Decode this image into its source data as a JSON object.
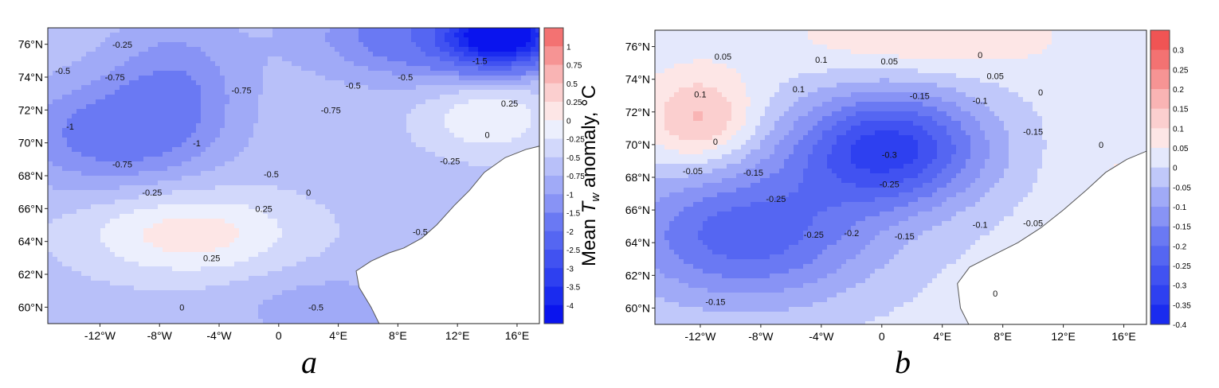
{
  "chart_data": [
    {
      "type": "heatmap",
      "panel": "a",
      "panel_label": "a",
      "ylabel": "",
      "xlim": [
        -15.5,
        17.5
      ],
      "ylim": [
        59,
        77
      ],
      "x_ticks": [
        -12,
        -8,
        -4,
        0,
        4,
        8,
        12,
        16
      ],
      "x_tick_labels": [
        "-12°W",
        "-8°W",
        "-4°W",
        "0",
        "4°E",
        "8°E",
        "12°E",
        "16°E"
      ],
      "y_ticks": [
        60,
        62,
        64,
        66,
        68,
        70,
        72,
        74,
        76
      ],
      "y_tick_labels": [
        "60°N",
        "62°N",
        "64°N",
        "66°N",
        "68°N",
        "70°N",
        "72°N",
        "74°N",
        "76°N"
      ],
      "colorbar": {
        "label": "Mean T_w anomaly, °C",
        "levels": [
          -4,
          -3.5,
          -3,
          -2.5,
          -2,
          -1.5,
          -1,
          -0.75,
          -0.5,
          -0.25,
          0,
          0.25,
          0.5,
          0.75,
          1,
          1.25
        ],
        "tick_labels": [
          "1",
          "0.75",
          "0.5",
          "0.25",
          "0",
          "-0.25",
          "-0.5",
          "-0.75",
          "-1",
          "-1.5",
          "-2",
          "-2.5",
          "-3",
          "-3.5",
          "-4"
        ],
        "colors": [
          "#0a14ee",
          "#1a2bef",
          "#2e40f0",
          "#4152f1",
          "#5566f2",
          "#6a79f3",
          "#8893f5",
          "#a0aaf7",
          "#b8c0f9",
          "#d2d8fb",
          "#eceffd",
          "#fde6e6",
          "#fbcfcf",
          "#f9b4b4",
          "#f69494",
          "#f37272"
        ]
      },
      "field": {
        "base": -0.35,
        "centers": [
          {
            "lon": 15,
            "lat": 76.5,
            "amp": -3.7,
            "sx": 2.5,
            "sy": 1.2
          },
          {
            "lon": 10,
            "lat": 76.5,
            "amp": -1.0,
            "sx": 5,
            "sy": 1.8
          },
          {
            "lon": -7,
            "lat": 73,
            "amp": -0.65,
            "sx": 3.2,
            "sy": 3
          },
          {
            "lon": -12,
            "lat": 70.5,
            "amp": -0.75,
            "sx": 4,
            "sy": 2.2
          },
          {
            "lon": -6,
            "lat": 64.5,
            "amp": 0.75,
            "sx": 5,
            "sy": 1.8
          },
          {
            "lon": 14,
            "lat": 71.5,
            "amp": 0.6,
            "sx": 3,
            "sy": 1.5
          },
          {
            "lon": 3,
            "lat": 60,
            "amp": -0.3,
            "sx": 4,
            "sy": 1.5
          }
        ]
      },
      "contour_labels": [
        "-0.25",
        "-0.5",
        "-0.75",
        "-1",
        "-0.75",
        "-0.5",
        "-0.75",
        "-0.5",
        "-1.5",
        "0.25",
        "0",
        "-0.25",
        "-1",
        "-0.75",
        "-0.5",
        "-0.25",
        "0",
        "0.25",
        "0.25",
        "-0.5",
        "0",
        "-0.5"
      ],
      "contour_label_coords": [
        [
          -10.5,
          75.8
        ],
        [
          -14.5,
          74.2
        ],
        [
          -11,
          73.8
        ],
        [
          -14,
          70.8
        ],
        [
          -2.5,
          73
        ],
        [
          5,
          73.3
        ],
        [
          3.5,
          71.8
        ],
        [
          8.5,
          73.8
        ],
        [
          13.5,
          74.8
        ],
        [
          15.5,
          72.2
        ],
        [
          14,
          70.3
        ],
        [
          11.5,
          68.7
        ],
        [
          -5.5,
          69.8
        ],
        [
          -10.5,
          68.5
        ],
        [
          -0.5,
          67.9
        ],
        [
          -8.5,
          66.8
        ],
        [
          2,
          66.8
        ],
        [
          -1,
          65.8
        ],
        [
          -4.5,
          62.8
        ],
        [
          9.5,
          64.4
        ],
        [
          -6.5,
          59.8
        ],
        [
          2.5,
          59.8
        ]
      ]
    },
    {
      "type": "heatmap",
      "panel": "b",
      "panel_label": "b",
      "ylabel": "",
      "xlim": [
        -15,
        17.5
      ],
      "ylim": [
        59,
        77
      ],
      "x_ticks": [
        -12,
        -8,
        -4,
        0,
        4,
        8,
        12,
        16
      ],
      "x_tick_labels": [
        "-12°W",
        "-8°W",
        "-4°W",
        "0",
        "4°E",
        "8°E",
        "12°E",
        "16°E"
      ],
      "y_ticks": [
        60,
        62,
        64,
        66,
        68,
        70,
        72,
        74,
        76
      ],
      "y_tick_labels": [
        "60°N",
        "62°N",
        "64°N",
        "66°N",
        "68°N",
        "70°N",
        "72°N",
        "74°N",
        "76°N"
      ],
      "colorbar": {
        "levels": [
          -0.4,
          -0.35,
          -0.3,
          -0.25,
          -0.2,
          -0.15,
          -0.1,
          -0.05,
          0,
          0.05,
          0.1,
          0.15,
          0.2,
          0.25,
          0.3,
          0.35
        ],
        "tick_labels": [
          "0.3",
          "0.25",
          "0.2",
          "0.15",
          "0.1",
          "0.05",
          "0",
          "-0.05",
          "-0.1",
          "-0.15",
          "-0.2",
          "-0.25",
          "-0.3",
          "-0.35",
          "-0.4"
        ],
        "colors": [
          "#1a2bef",
          "#2e40f0",
          "#4152f1",
          "#5566f2",
          "#6a79f3",
          "#8893f5",
          "#a0aaf7",
          "#c0c8fa",
          "#e4e8fc",
          "#fde6e6",
          "#fbcfcf",
          "#f9b4b4",
          "#f69494",
          "#f37272",
          "#f05454"
        ]
      },
      "field": {
        "base": 0.02,
        "centers": [
          {
            "lon": 0.5,
            "lat": 69.8,
            "amp": -0.34,
            "sx": 4.5,
            "sy": 2.5
          },
          {
            "lon": -9,
            "lat": 64.5,
            "amp": -0.25,
            "sx": 6,
            "sy": 3.0
          },
          {
            "lon": -12,
            "lat": 71.5,
            "amp": 0.15,
            "sx": 2.5,
            "sy": 2
          },
          {
            "lon": 3,
            "lat": 76.5,
            "amp": 0.08,
            "sx": 6,
            "sy": 1.5
          },
          {
            "lon": 16,
            "lat": 66,
            "amp": 0.04,
            "sx": 3,
            "sy": 4
          }
        ]
      },
      "contour_labels": [
        "0.05",
        "0.1",
        "0.05",
        "0",
        "0.05",
        "0.1",
        "0",
        "0.1",
        "0",
        "-0.15",
        "-0.1",
        "-0.15",
        "-0.3",
        "-0.25",
        "0",
        "-0.05",
        "-0.15",
        "-0.25",
        "-0.25",
        "-0.2",
        "-0.15",
        "-0.1",
        "-0.05",
        "-0.15",
        "0"
      ],
      "contour_label_coords": [
        [
          -10.5,
          75.2
        ],
        [
          -4,
          75
        ],
        [
          0.5,
          74.9
        ],
        [
          6.5,
          75.3
        ],
        [
          7.5,
          74
        ],
        [
          -12,
          72.9
        ],
        [
          -11,
          70
        ],
        [
          -5.5,
          73.2
        ],
        [
          10.5,
          73
        ],
        [
          2.5,
          72.8
        ],
        [
          6.5,
          72.5
        ],
        [
          10,
          70.6
        ],
        [
          0.5,
          69.2
        ],
        [
          0.5,
          67.4
        ],
        [
          14.5,
          69.8
        ],
        [
          -12.5,
          68.2
        ],
        [
          -8.5,
          68.1
        ],
        [
          -7,
          66.5
        ],
        [
          -4.5,
          64.3
        ],
        [
          -2,
          64.4
        ],
        [
          1.5,
          64.2
        ],
        [
          6.5,
          64.9
        ],
        [
          10,
          65
        ],
        [
          -11,
          60.2
        ],
        [
          7.5,
          60.7
        ]
      ]
    }
  ]
}
